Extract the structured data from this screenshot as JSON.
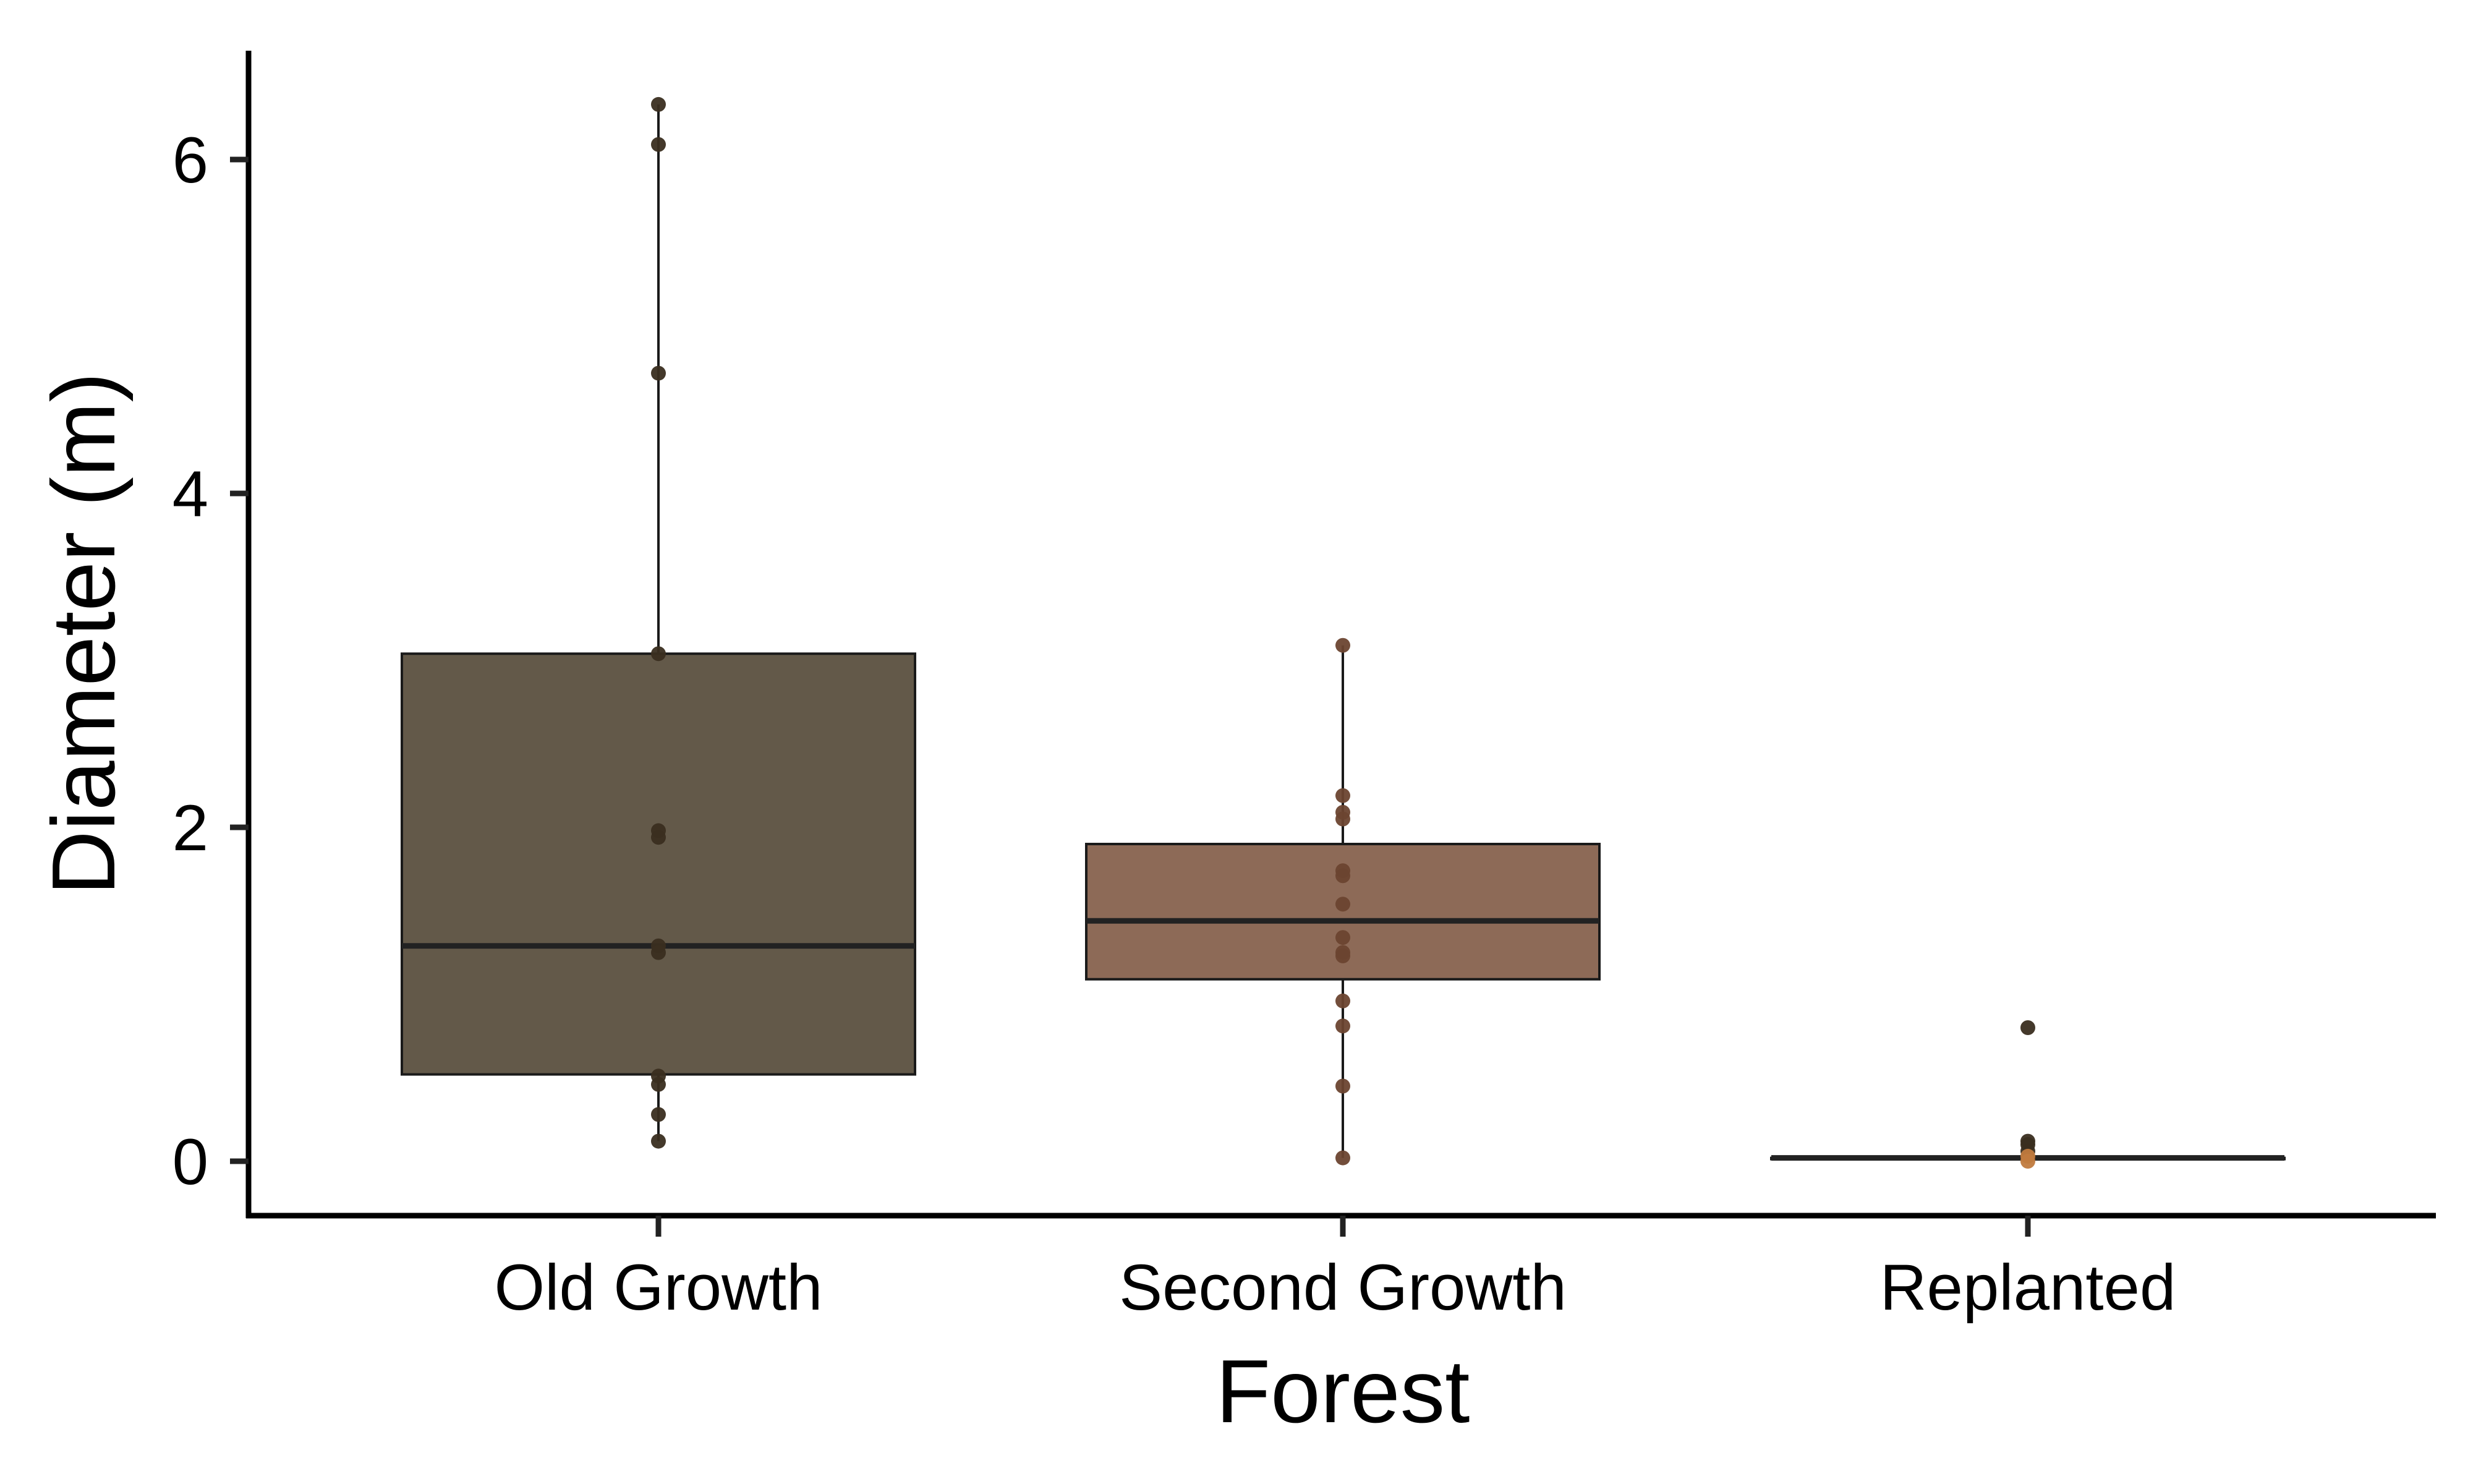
{
  "chart_data": {
    "type": "box",
    "title": "",
    "xlabel": "Forest",
    "ylabel": "Diameter (m)",
    "ylim": [
      -0.3,
      6.65
    ],
    "yticks": [
      0,
      2,
      4,
      6
    ],
    "ytick_labels": [
      "0",
      "2",
      "4",
      "6"
    ],
    "grid": false,
    "legend": "none",
    "categories": [
      "Old Growth",
      "Second Growth",
      "Replanted"
    ],
    "series": [
      {
        "category": "Old Growth",
        "box_color": "#635949",
        "point_color": "#3a2e20",
        "min": 0.12,
        "q1": 0.52,
        "median": 1.29,
        "q3": 3.04,
        "max": 6.33,
        "points": [
          6.33,
          6.09,
          4.72,
          3.04,
          1.98,
          1.94,
          1.29,
          1.25,
          0.51,
          0.46,
          0.28,
          0.12
        ]
      },
      {
        "category": "Second Growth",
        "box_color": "#8d6a57",
        "point_color": "#6b4430",
        "min": 0.02,
        "q1": 1.09,
        "median": 1.44,
        "q3": 1.9,
        "max": 3.09,
        "points": [
          3.09,
          2.19,
          2.09,
          2.05,
          1.74,
          1.71,
          1.54,
          1.34,
          1.25,
          1.23,
          0.96,
          0.81,
          0.45,
          0.02
        ]
      },
      {
        "category": "Replanted",
        "box_color": "#c4894f",
        "point_color": "#3a2e20",
        "min": 0.0,
        "q1": 0.02,
        "median": 0.02,
        "q3": 0.02,
        "max": 0.03,
        "points": [
          0.8,
          0.12,
          0.1,
          0.06,
          0.03,
          0.0
        ],
        "outliers": [
          0.8,
          0.12,
          0.1
        ]
      }
    ]
  }
}
